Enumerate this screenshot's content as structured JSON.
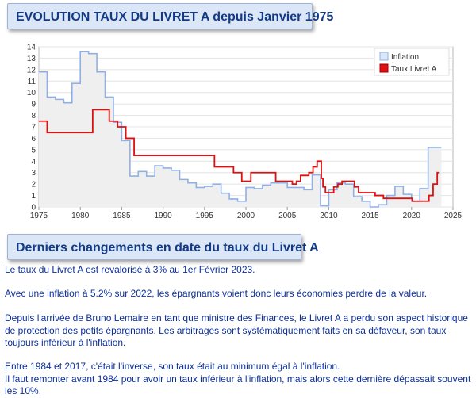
{
  "header": {
    "title": "EVOLUTION TAUX DU LIVRET A depuis Janvier 1975"
  },
  "section2": {
    "title": "Derniers changements en date du taux du Livret A"
  },
  "paragraphs": {
    "p1": "Le taux du Livret A est revalorisé à 3% au 1er Février 2023.",
    "p2": "Avec une inflation à 5.2% sur 2022, les épargnants voient donc leurs économies perdre de la valeur.",
    "p3_line1": "Depuis l'arrivée de Bruno Lemaire en tant que ministre des Finances, le Livret A a perdu son aspect historique",
    "p3_line2": "de protection des petits épargnants. Les arbitrages sont systématiquement faits en sa défaveur, son taux",
    "p3_line3": "toujours inférieur à l'inflation.",
    "p4_line1": "Entre 1984 et 2017, c'était l'inverse, son taux était au minimum égal à l'inflation.",
    "p4_line2": "Il faut remonter avant 1984 pour avoir un taux inférieur à l'inflation, mais alors cette dernière dépassait souvent",
    "p4_line3": "les 10%."
  },
  "chart_data": {
    "type": "line",
    "title": "",
    "xlabel": "",
    "ylabel": "",
    "xlim": [
      1975,
      2025
    ],
    "ylim": [
      0,
      14
    ],
    "x_ticks": [
      1975,
      1980,
      1985,
      1990,
      1995,
      2000,
      2005,
      2010,
      2015,
      2020,
      2025
    ],
    "y_ticks": [
      0,
      1,
      2,
      3,
      4,
      5,
      6,
      7,
      8,
      9,
      10,
      11,
      12,
      13,
      14
    ],
    "grid": "horizontal",
    "legend_position": "top-right",
    "step": true,
    "series": [
      {
        "name": "Inflation",
        "color": "#8fb0e6",
        "fill": "#efefef",
        "points": [
          [
            1975,
            11.8
          ],
          [
            1976,
            9.6
          ],
          [
            1977,
            9.4
          ],
          [
            1978,
            9.1
          ],
          [
            1979,
            10.8
          ],
          [
            1980,
            13.6
          ],
          [
            1981,
            13.4
          ],
          [
            1982,
            11.8
          ],
          [
            1983,
            9.6
          ],
          [
            1984,
            7.4
          ],
          [
            1985,
            5.8
          ],
          [
            1986,
            2.7
          ],
          [
            1987,
            3.1
          ],
          [
            1988,
            2.7
          ],
          [
            1989,
            3.6
          ],
          [
            1990,
            3.4
          ],
          [
            1991,
            3.2
          ],
          [
            1992,
            2.4
          ],
          [
            1993,
            2.1
          ],
          [
            1994,
            1.7
          ],
          [
            1995,
            1.8
          ],
          [
            1996,
            2.0
          ],
          [
            1997,
            1.2
          ],
          [
            1998,
            0.7
          ],
          [
            1999,
            0.5
          ],
          [
            2000,
            1.7
          ],
          [
            2001,
            1.6
          ],
          [
            2002,
            1.9
          ],
          [
            2003,
            2.1
          ],
          [
            2004,
            2.1
          ],
          [
            2005,
            1.7
          ],
          [
            2006,
            1.7
          ],
          [
            2007,
            1.5
          ],
          [
            2008,
            2.8
          ],
          [
            2009,
            0.1
          ],
          [
            2010,
            1.5
          ],
          [
            2011,
            2.1
          ],
          [
            2012,
            2.0
          ],
          [
            2013,
            0.9
          ],
          [
            2014,
            0.5
          ],
          [
            2015,
            0.0
          ],
          [
            2016,
            0.2
          ],
          [
            2017,
            1.0
          ],
          [
            2018,
            1.8
          ],
          [
            2019,
            1.1
          ],
          [
            2020,
            0.5
          ],
          [
            2021,
            1.6
          ],
          [
            2022,
            5.2
          ],
          [
            2023,
            5.2
          ]
        ]
      },
      {
        "name": "Taux Livret A",
        "color": "#e01010",
        "points": [
          [
            1975,
            7.5
          ],
          [
            1976,
            6.5
          ],
          [
            1981,
            6.5
          ],
          [
            1981.5,
            8.5
          ],
          [
            1983,
            8.5
          ],
          [
            1983.5,
            7.5
          ],
          [
            1984.5,
            7.0
          ],
          [
            1985.5,
            6.0
          ],
          [
            1986.5,
            4.5
          ],
          [
            1996,
            4.5
          ],
          [
            1996.2,
            3.5
          ],
          [
            1998.5,
            3.0
          ],
          [
            1999.5,
            2.25
          ],
          [
            2000.6,
            3.0
          ],
          [
            2003.6,
            2.25
          ],
          [
            2005.6,
            2.0
          ],
          [
            2006.1,
            2.25
          ],
          [
            2006.6,
            2.75
          ],
          [
            2007.6,
            3.0
          ],
          [
            2008.1,
            3.5
          ],
          [
            2008.6,
            4.0
          ],
          [
            2009.1,
            2.5
          ],
          [
            2009.3,
            1.75
          ],
          [
            2009.6,
            1.25
          ],
          [
            2010.6,
            1.75
          ],
          [
            2011.1,
            2.0
          ],
          [
            2011.6,
            2.25
          ],
          [
            2013.1,
            1.75
          ],
          [
            2013.6,
            1.25
          ],
          [
            2015.6,
            1.0
          ],
          [
            2016.6,
            0.75
          ],
          [
            2020.1,
            0.5
          ],
          [
            2022.1,
            1.0
          ],
          [
            2022.6,
            2.0
          ],
          [
            2023.1,
            3.0
          ],
          [
            2023.3,
            3.0
          ]
        ]
      }
    ]
  }
}
